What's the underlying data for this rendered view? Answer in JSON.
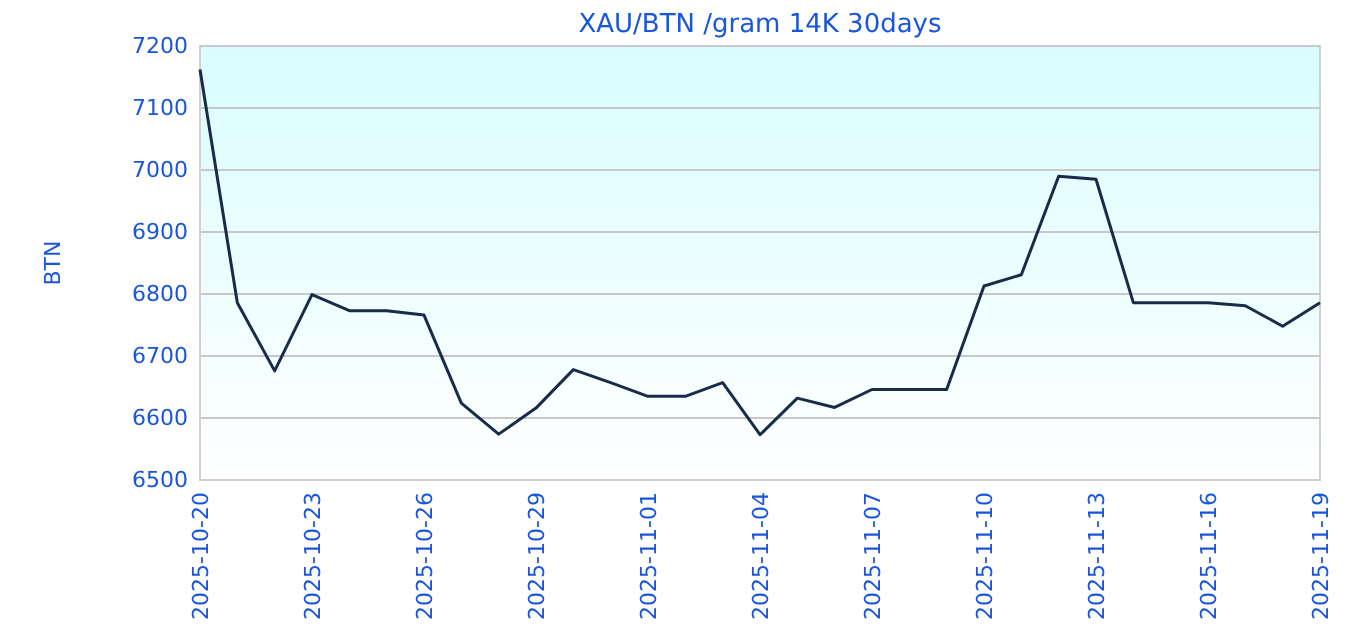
{
  "chart_data": {
    "type": "line",
    "title": "XAU/BTN /gram 14K 30days",
    "ylabel": "BTN",
    "x": [
      "2025-10-20",
      "2025-10-21",
      "2025-10-22",
      "2025-10-23",
      "2025-10-24",
      "2025-10-25",
      "2025-10-26",
      "2025-10-27",
      "2025-10-28",
      "2025-10-29",
      "2025-10-30",
      "2025-10-31",
      "2025-11-01",
      "2025-11-02",
      "2025-11-03",
      "2025-11-04",
      "2025-11-05",
      "2025-11-06",
      "2025-11-07",
      "2025-11-08",
      "2025-11-09",
      "2025-11-10",
      "2025-11-11",
      "2025-11-12",
      "2025-11-13",
      "2025-11-14",
      "2025-11-15",
      "2025-11-16",
      "2025-11-17",
      "2025-11-18",
      "2025-11-19"
    ],
    "series": [
      {
        "color": "#1a2b4a",
        "values": [
          7162,
          6786,
          6676,
          6799,
          6773,
          6773,
          6766,
          6624,
          6574,
          6616,
          6678,
          6657,
          6635,
          6635,
          6657,
          6573,
          6632,
          6617,
          6646,
          6646,
          6646,
          6813,
          6831,
          6990,
          6985,
          6786,
          6786,
          6786,
          6781,
          6748,
          6786
        ]
      }
    ],
    "xlim": [
      "2025-10-20",
      "2025-11-19"
    ],
    "xticks": [
      "2025-10-20",
      "2025-10-23",
      "2025-10-26",
      "2025-10-29",
      "2025-11-01",
      "2025-11-04",
      "2025-11-07",
      "2025-11-10",
      "2025-11-13",
      "2025-11-16",
      "2025-11-19"
    ],
    "ylim": [
      6500,
      7200
    ],
    "yticks": [
      6500,
      6600,
      6700,
      6800,
      6900,
      7000,
      7100,
      7200
    ],
    "grid": "y",
    "marker": "none",
    "line_style": "solid"
  }
}
